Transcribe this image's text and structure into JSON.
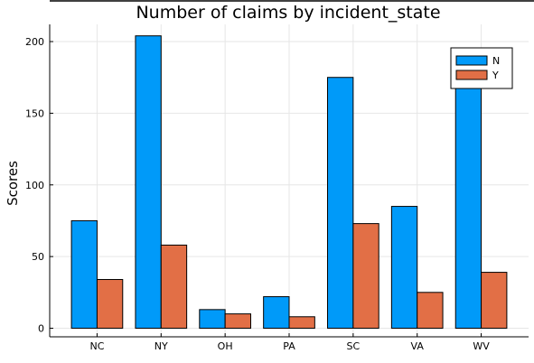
{
  "chart_data": {
    "type": "bar",
    "title": "Number of claims by incident_state",
    "xlabel": "",
    "ylabel": "Scores",
    "categories": [
      "NC",
      "NY",
      "OH",
      "PA",
      "SC",
      "VA",
      "WV"
    ],
    "series": [
      {
        "name": "N",
        "color": "#009af9",
        "values": [
          75,
          204,
          13,
          22,
          175,
          85,
          179
        ]
      },
      {
        "name": "Y",
        "color": "#e26f46",
        "values": [
          34,
          58,
          10,
          8,
          73,
          25,
          39
        ]
      }
    ],
    "yticks": [
      0,
      50,
      100,
      150,
      200
    ],
    "ylim": [
      -6,
      212
    ],
    "grid": true,
    "legend_position": "top-right"
  }
}
